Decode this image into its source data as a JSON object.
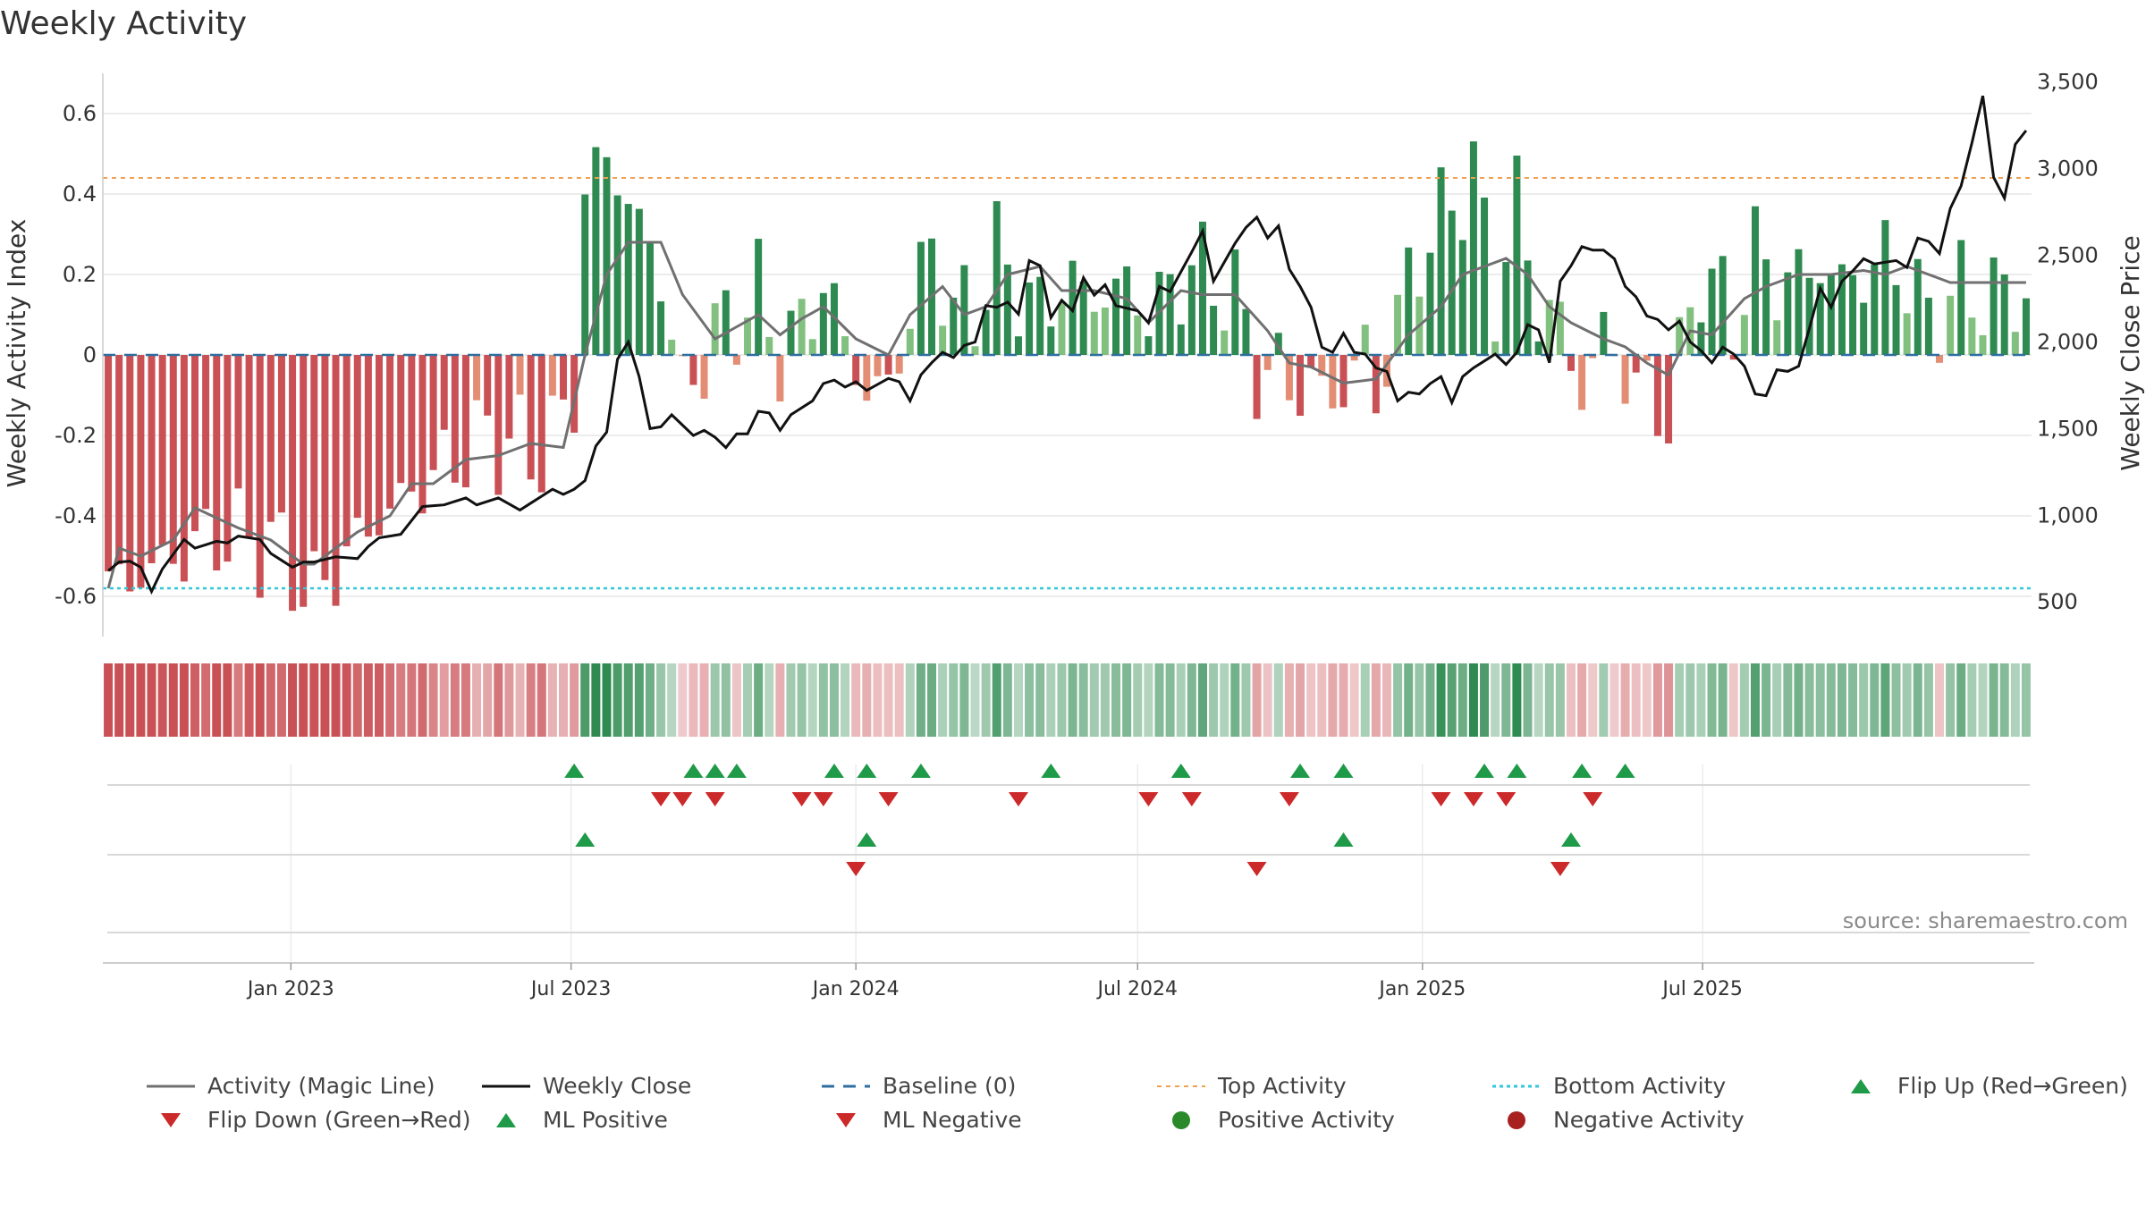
{
  "title": "Weekly Activity",
  "source": "source: sharemaestro.com",
  "colors": {
    "dark_red": "#c95055",
    "light_red": "#e38d74",
    "dark_green": "#2e8a50",
    "light_green": "#82c080",
    "magic_line": "#707070",
    "close_line": "#111111",
    "baseline": "#2e6fa0",
    "top": "#f0a050",
    "bottom": "#30c8d8",
    "up": "#1e9a48",
    "down": "#cc2a2a",
    "grid": "#e6e6e6"
  },
  "chart_data": {
    "type": "bar",
    "title": "Weekly Activity",
    "ylabel": "Weekly Activity Index",
    "y2label": "Weekly Close Price",
    "ylim": [
      -0.7,
      0.7
    ],
    "y2lim": [
      300,
      3550
    ],
    "yticks": [
      -0.6,
      -0.4,
      -0.2,
      0,
      0.2,
      0.4,
      0.6
    ],
    "ytick_labels": [
      "-0.6",
      "-0.4",
      "-0.2",
      "0",
      "0.2",
      "0.4",
      "0.6"
    ],
    "y2ticks": [
      500,
      1000,
      1500,
      2000,
      2500,
      3000,
      3500
    ],
    "y2tick_labels": [
      "500",
      "1,000",
      "1,500",
      "2,000",
      "2,500",
      "3,000",
      "3,500"
    ],
    "start_date": "2022-09-05",
    "x_tick_dates": [
      "2023-01-01",
      "2023-07-01",
      "2024-01-01",
      "2024-07-01",
      "2025-01-01",
      "2025-07-01"
    ],
    "x_tick_labels": [
      "Jan 2023",
      "Jul 2023",
      "Jan 2024",
      "Jul 2024",
      "Jan 2025",
      "Jul 2025"
    ],
    "thresholds": {
      "top": 0.44,
      "bottom": -0.58,
      "baseline": 0
    },
    "activity_keys": [
      [
        0,
        -0.58
      ],
      [
        5,
        -0.52
      ],
      [
        10,
        -0.45
      ],
      [
        15,
        -0.47
      ],
      [
        19,
        -0.6
      ],
      [
        24,
        -0.43
      ],
      [
        30,
        -0.3
      ],
      [
        35,
        -0.2
      ],
      [
        40,
        -0.25
      ],
      [
        43,
        -0.1
      ],
      [
        44,
        0.4
      ],
      [
        46,
        0.5
      ],
      [
        51,
        0.2
      ],
      [
        53,
        -0.1
      ],
      [
        56,
        0.05
      ],
      [
        60,
        0.15
      ],
      [
        62,
        0.0
      ],
      [
        64,
        0.07
      ],
      [
        66,
        0.18
      ],
      [
        70,
        -0.1
      ],
      [
        72,
        -0.08
      ],
      [
        74,
        0.1
      ],
      [
        76,
        0.28
      ],
      [
        78,
        0.1
      ],
      [
        80,
        0.12
      ],
      [
        82,
        0.25
      ],
      [
        86,
        0.1
      ],
      [
        88,
        0.18
      ],
      [
        92,
        0.14
      ],
      [
        94,
        0.18
      ],
      [
        96,
        0.1
      ],
      [
        100,
        0.22
      ],
      [
        104,
        0.15
      ],
      [
        106,
        -0.03
      ],
      [
        110,
        -0.08
      ],
      [
        114,
        -0.1
      ],
      [
        116,
        0.03
      ],
      [
        117,
        -0.12
      ],
      [
        120,
        0.2
      ],
      [
        124,
        0.38
      ],
      [
        126,
        0.45
      ],
      [
        128,
        0.15
      ],
      [
        130,
        0.38
      ],
      [
        132,
        0.12
      ],
      [
        134,
        0.08
      ],
      [
        136,
        -0.1
      ],
      [
        138,
        0.06
      ],
      [
        140,
        -0.05
      ],
      [
        142,
        -0.1
      ],
      [
        144,
        -0.15
      ],
      [
        147,
        0.22
      ],
      [
        150,
        0.08
      ],
      [
        152,
        0.26
      ],
      [
        154,
        0.18
      ],
      [
        156,
        0.2
      ],
      [
        158,
        0.22
      ],
      [
        160,
        0.18
      ],
      [
        162,
        0.2
      ],
      [
        164,
        0.24
      ],
      [
        166,
        0.2
      ],
      [
        168,
        0.08
      ],
      [
        170,
        0.15
      ]
    ],
    "magic_keys": [
      [
        0,
        -0.58
      ],
      [
        1,
        -0.48
      ],
      [
        3,
        -0.5
      ],
      [
        6,
        -0.46
      ],
      [
        8,
        -0.38
      ],
      [
        12,
        -0.43
      ],
      [
        15,
        -0.46
      ],
      [
        18,
        -0.52
      ],
      [
        19,
        -0.52
      ],
      [
        21,
        -0.48
      ],
      [
        23,
        -0.44
      ],
      [
        26,
        -0.4
      ],
      [
        28,
        -0.32
      ],
      [
        30,
        -0.32
      ],
      [
        33,
        -0.26
      ],
      [
        36,
        -0.25
      ],
      [
        39,
        -0.22
      ],
      [
        42,
        -0.23
      ],
      [
        44,
        0.0
      ],
      [
        46,
        0.2
      ],
      [
        48,
        0.28
      ],
      [
        51,
        0.28
      ],
      [
        53,
        0.15
      ],
      [
        56,
        0.04
      ],
      [
        60,
        0.1
      ],
      [
        62,
        0.05
      ],
      [
        64,
        0.09
      ],
      [
        66,
        0.12
      ],
      [
        69,
        0.04
      ],
      [
        72,
        0.0
      ],
      [
        74,
        0.1
      ],
      [
        77,
        0.17
      ],
      [
        79,
        0.1
      ],
      [
        81,
        0.12
      ],
      [
        83,
        0.2
      ],
      [
        86,
        0.22
      ],
      [
        88,
        0.16
      ],
      [
        91,
        0.16
      ],
      [
        94,
        0.14
      ],
      [
        96,
        0.08
      ],
      [
        99,
        0.16
      ],
      [
        101,
        0.15
      ],
      [
        104,
        0.15
      ],
      [
        107,
        0.06
      ],
      [
        109,
        -0.02
      ],
      [
        111,
        -0.03
      ],
      [
        114,
        -0.07
      ],
      [
        117,
        -0.06
      ],
      [
        120,
        0.05
      ],
      [
        123,
        0.12
      ],
      [
        125,
        0.2
      ],
      [
        127,
        0.22
      ],
      [
        129,
        0.24
      ],
      [
        131,
        0.2
      ],
      [
        133,
        0.12
      ],
      [
        135,
        0.08
      ],
      [
        138,
        0.04
      ],
      [
        140,
        0.02
      ],
      [
        142,
        -0.02
      ],
      [
        144,
        -0.05
      ],
      [
        146,
        0.06
      ],
      [
        148,
        0.05
      ],
      [
        151,
        0.14
      ],
      [
        153,
        0.17
      ],
      [
        156,
        0.2
      ],
      [
        159,
        0.2
      ],
      [
        162,
        0.21
      ],
      [
        164,
        0.2
      ],
      [
        166,
        0.22
      ],
      [
        168,
        0.2
      ],
      [
        170,
        0.18
      ]
    ],
    "close_keys": [
      [
        0,
        680
      ],
      [
        1,
        730
      ],
      [
        2,
        735
      ],
      [
        3,
        700
      ],
      [
        4,
        560
      ],
      [
        5,
        690
      ],
      [
        7,
        860
      ],
      [
        8,
        810
      ],
      [
        10,
        850
      ],
      [
        11,
        840
      ],
      [
        12,
        880
      ],
      [
        14,
        860
      ],
      [
        15,
        780
      ],
      [
        17,
        700
      ],
      [
        18,
        730
      ],
      [
        19,
        730
      ],
      [
        21,
        760
      ],
      [
        23,
        750
      ],
      [
        24,
        820
      ],
      [
        25,
        870
      ],
      [
        27,
        890
      ],
      [
        29,
        1050
      ],
      [
        31,
        1060
      ],
      [
        33,
        1100
      ],
      [
        34,
        1060
      ],
      [
        36,
        1100
      ],
      [
        38,
        1030
      ],
      [
        40,
        1110
      ],
      [
        41,
        1150
      ],
      [
        42,
        1120
      ],
      [
        43,
        1150
      ],
      [
        44,
        1200
      ],
      [
        45,
        1400
      ],
      [
        46,
        1480
      ],
      [
        47,
        1900
      ],
      [
        48,
        2000
      ],
      [
        49,
        1800
      ],
      [
        50,
        1500
      ],
      [
        51,
        1510
      ],
      [
        52,
        1580
      ],
      [
        53,
        1520
      ],
      [
        54,
        1460
      ],
      [
        55,
        1490
      ],
      [
        56,
        1450
      ],
      [
        57,
        1390
      ],
      [
        58,
        1470
      ],
      [
        59,
        1470
      ],
      [
        60,
        1600
      ],
      [
        61,
        1590
      ],
      [
        62,
        1490
      ],
      [
        63,
        1580
      ],
      [
        65,
        1660
      ],
      [
        66,
        1760
      ],
      [
        67,
        1780
      ],
      [
        68,
        1740
      ],
      [
        69,
        1770
      ],
      [
        70,
        1720
      ],
      [
        72,
        1790
      ],
      [
        73,
        1770
      ],
      [
        74,
        1660
      ],
      [
        75,
        1810
      ],
      [
        76,
        1880
      ],
      [
        77,
        1940
      ],
      [
        78,
        1910
      ],
      [
        79,
        1980
      ],
      [
        80,
        2000
      ],
      [
        81,
        2210
      ],
      [
        82,
        2200
      ],
      [
        83,
        2230
      ],
      [
        84,
        2160
      ],
      [
        85,
        2470
      ],
      [
        86,
        2440
      ],
      [
        87,
        2140
      ],
      [
        88,
        2240
      ],
      [
        89,
        2180
      ],
      [
        90,
        2370
      ],
      [
        91,
        2270
      ],
      [
        92,
        2330
      ],
      [
        93,
        2210
      ],
      [
        95,
        2180
      ],
      [
        96,
        2110
      ],
      [
        97,
        2320
      ],
      [
        98,
        2290
      ],
      [
        100,
        2520
      ],
      [
        101,
        2640
      ],
      [
        102,
        2350
      ],
      [
        104,
        2570
      ],
      [
        105,
        2660
      ],
      [
        106,
        2720
      ],
      [
        107,
        2600
      ],
      [
        108,
        2670
      ],
      [
        109,
        2420
      ],
      [
        110,
        2320
      ],
      [
        111,
        2200
      ],
      [
        112,
        1970
      ],
      [
        113,
        1940
      ],
      [
        114,
        2050
      ],
      [
        115,
        1940
      ],
      [
        116,
        1930
      ],
      [
        117,
        1850
      ],
      [
        118,
        1830
      ],
      [
        119,
        1660
      ],
      [
        120,
        1710
      ],
      [
        121,
        1700
      ],
      [
        122,
        1760
      ],
      [
        123,
        1800
      ],
      [
        124,
        1650
      ],
      [
        125,
        1800
      ],
      [
        126,
        1850
      ],
      [
        127,
        1890
      ],
      [
        128,
        1930
      ],
      [
        129,
        1870
      ],
      [
        130,
        1940
      ],
      [
        131,
        2100
      ],
      [
        132,
        2070
      ],
      [
        133,
        1880
      ],
      [
        134,
        2350
      ],
      [
        135,
        2440
      ],
      [
        136,
        2550
      ],
      [
        137,
        2530
      ],
      [
        138,
        2530
      ],
      [
        139,
        2480
      ],
      [
        140,
        2320
      ],
      [
        141,
        2260
      ],
      [
        142,
        2150
      ],
      [
        143,
        2130
      ],
      [
        144,
        2070
      ],
      [
        145,
        2120
      ],
      [
        146,
        2000
      ],
      [
        147,
        1950
      ],
      [
        148,
        1880
      ],
      [
        149,
        1970
      ],
      [
        150,
        1930
      ],
      [
        151,
        1860
      ],
      [
        152,
        1700
      ],
      [
        153,
        1690
      ],
      [
        154,
        1840
      ],
      [
        155,
        1830
      ],
      [
        156,
        1860
      ],
      [
        157,
        2080
      ],
      [
        158,
        2310
      ],
      [
        159,
        2200
      ],
      [
        160,
        2350
      ],
      [
        161,
        2410
      ],
      [
        162,
        2480
      ],
      [
        163,
        2450
      ],
      [
        164,
        2460
      ],
      [
        165,
        2470
      ],
      [
        166,
        2430
      ],
      [
        167,
        2600
      ],
      [
        168,
        2580
      ],
      [
        169,
        2510
      ],
      [
        170,
        2770
      ],
      [
        171,
        2900
      ],
      [
        172,
        3150
      ],
      [
        173,
        3420
      ],
      [
        174,
        2950
      ],
      [
        175,
        2830
      ],
      [
        176,
        3140
      ],
      [
        177,
        3220
      ]
    ],
    "bars_interp_limit": 170,
    "flip_up_weeks": [
      43,
      54,
      56,
      58,
      67,
      70,
      75,
      87,
      99,
      110,
      114,
      127,
      130,
      136,
      140
    ],
    "flip_down_weeks": [
      51,
      53,
      56,
      64,
      66,
      72,
      84,
      96,
      100,
      109,
      123,
      126,
      129,
      137
    ],
    "ml_positive_weeks": [
      44,
      70,
      114,
      135
    ],
    "ml_negative_weeks": [
      69,
      106,
      134
    ],
    "legend": [
      {
        "label": "Activity (Magic Line)",
        "kind": "line-solid-gray"
      },
      {
        "label": "Weekly Close",
        "kind": "line-solid-black"
      },
      {
        "label": "Baseline (0)",
        "kind": "line-dash-blue"
      },
      {
        "label": "Top Activity",
        "kind": "line-dot-orange"
      },
      {
        "label": "Bottom Activity",
        "kind": "line-dot-cyan"
      },
      {
        "label": "Flip Up (Red→Green)",
        "kind": "tri-up"
      },
      {
        "label": "Flip Down (Green→Red)",
        "kind": "tri-down"
      },
      {
        "label": "ML Positive",
        "kind": "tri-up"
      },
      {
        "label": "ML Negative",
        "kind": "tri-down"
      },
      {
        "label": "Positive Activity",
        "kind": "dot-green"
      },
      {
        "label": "Negative Activity",
        "kind": "dot-red"
      }
    ]
  }
}
